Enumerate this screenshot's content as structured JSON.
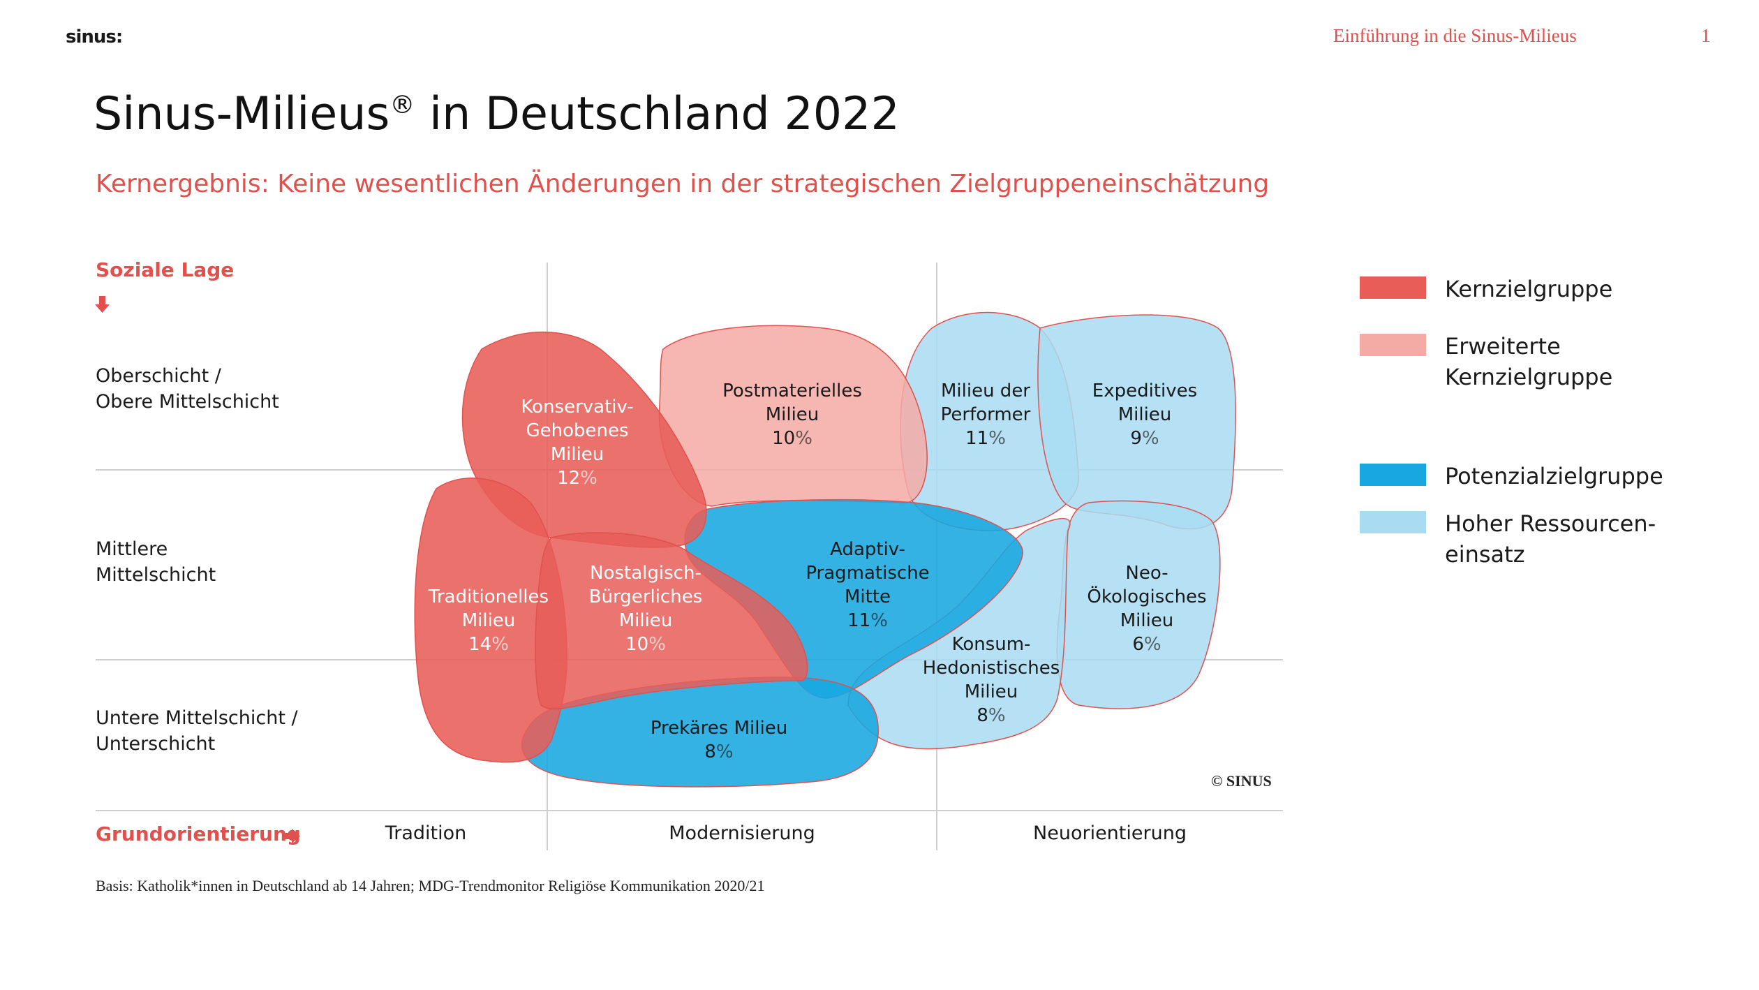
{
  "header": {
    "logo_text": "sinus:",
    "section_title": "Einführung in die Sinus-Milieus",
    "page_number": "1"
  },
  "title": {
    "main": "Sinus-Milieus",
    "registered_mark": "®",
    "main_suffix": " in Deutschland 2022",
    "subtitle": "Kernergebnis: Keine wesentlichen Änderungen in der strategischen Zielgruppeneinschätzung"
  },
  "diagram": {
    "y_axis_title": "Soziale Lage",
    "rows": [
      {
        "line1": "Oberschicht /",
        "line2": "Obere Mittelschicht"
      },
      {
        "line1": "Mittlere",
        "line2": "Mittelschicht"
      },
      {
        "line1": "Untere Mittelschicht /",
        "line2": "Unterschicht"
      }
    ],
    "x_axis_title": "Grundorientierung",
    "columns": [
      "Tradition",
      "Modernisierung",
      "Neuorientierung"
    ],
    "copyright": "© SINUS",
    "milieus": [
      {
        "id": "konservativ",
        "lines": [
          "Konservativ-",
          "Gehobenes",
          "Milieu"
        ],
        "share": "12",
        "group": "kern"
      },
      {
        "id": "postmateriell",
        "lines": [
          "Postmaterielles",
          "Milieu"
        ],
        "share": "10",
        "group": "erweitert"
      },
      {
        "id": "performer",
        "lines": [
          "Milieu der",
          "Performer"
        ],
        "share": "11",
        "group": "hoher"
      },
      {
        "id": "expeditiv",
        "lines": [
          "Expeditives",
          "Milieu"
        ],
        "share": "9",
        "group": "hoher"
      },
      {
        "id": "traditionell",
        "lines": [
          "Traditionelles",
          "Milieu"
        ],
        "share": "14",
        "group": "kern"
      },
      {
        "id": "nostalgisch",
        "lines": [
          "Nostalgisch-",
          "Bürgerliches",
          "Milieu"
        ],
        "share": "10",
        "group": "kern"
      },
      {
        "id": "adaptiv",
        "lines": [
          "Adaptiv-",
          "Pragmatische",
          "Mitte"
        ],
        "share": "11",
        "group": "potenzial"
      },
      {
        "id": "neooeko",
        "lines": [
          "Neo-",
          "Ökologisches",
          "Milieu"
        ],
        "share": "6",
        "group": "hoher"
      },
      {
        "id": "konsum",
        "lines": [
          "Konsum-",
          "Hedonistisches",
          "Milieu"
        ],
        "share": "8",
        "group": "hoher"
      },
      {
        "id": "prekaer",
        "lines": [
          "Prekäres Milieu"
        ],
        "share": "8",
        "group": "potenzial"
      }
    ],
    "percent_sign": "%"
  },
  "legend": [
    {
      "id": "kern",
      "line1": "Kernzielgruppe",
      "line2": "",
      "color": "#e85d58"
    },
    {
      "id": "erweitert",
      "line1": "Erweiterte",
      "line2": "Kernzielgruppe",
      "color": "#f4aaa5"
    },
    {
      "id": "potenzial",
      "line1": "Potenzialzielgruppe",
      "line2": "",
      "color": "#18a7e0"
    },
    {
      "id": "hoher",
      "line1": "Hoher Ressourcen-",
      "line2": "einsatz",
      "color": "#a9dcf2"
    }
  ],
  "colors": {
    "accent": "#e0514d",
    "kern": "#e85d58",
    "erweitert": "#f4aaa5",
    "potenzial": "#18a7e0",
    "hoher": "#a9dcf2"
  },
  "footnote": "Basis: Katholik*innen in Deutschland ab 14 Jahren; MDG-Trendmonitor Religiöse Kommunikation 2020/21"
}
